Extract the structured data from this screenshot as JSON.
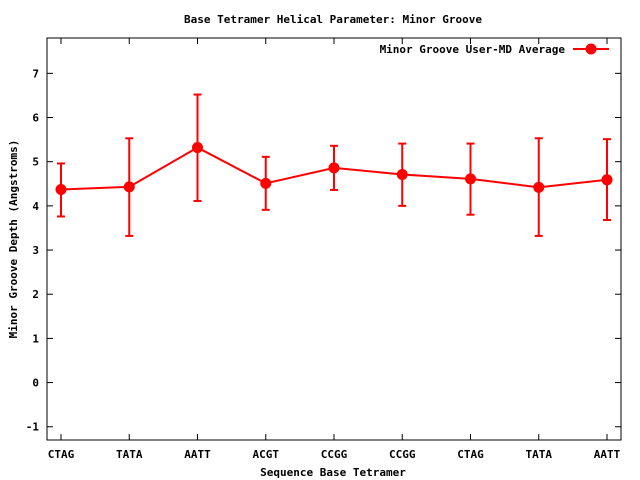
{
  "chart_data": {
    "type": "line",
    "title": "Base Tetramer Helical Parameter: Minor Groove",
    "xlabel": "Sequence Base Tetramer",
    "ylabel": "Minor Groove Depth (Angstroms)",
    "categories": [
      "CTAG",
      "TATA",
      "AATT",
      "ACGT",
      "CCGG",
      "CCGG",
      "CTAG",
      "TATA",
      "AATT"
    ],
    "ylim": [
      -1.3,
      7.8
    ],
    "yticks": [
      -1,
      0,
      1,
      2,
      3,
      4,
      5,
      6,
      7
    ],
    "grid": false,
    "legend_position": "top-right",
    "series": [
      {
        "name": "Minor Groove User-MD Average",
        "color": "#ff0000",
        "values": [
          4.37,
          4.43,
          5.32,
          4.51,
          4.86,
          4.71,
          4.61,
          4.42,
          4.59
        ],
        "err_low": [
          3.76,
          3.32,
          4.11,
          3.91,
          4.36,
          4.0,
          3.8,
          3.32,
          3.68
        ],
        "err_high": [
          4.96,
          5.53,
          6.52,
          5.11,
          5.36,
          5.41,
          5.41,
          5.53,
          5.51
        ]
      }
    ]
  }
}
